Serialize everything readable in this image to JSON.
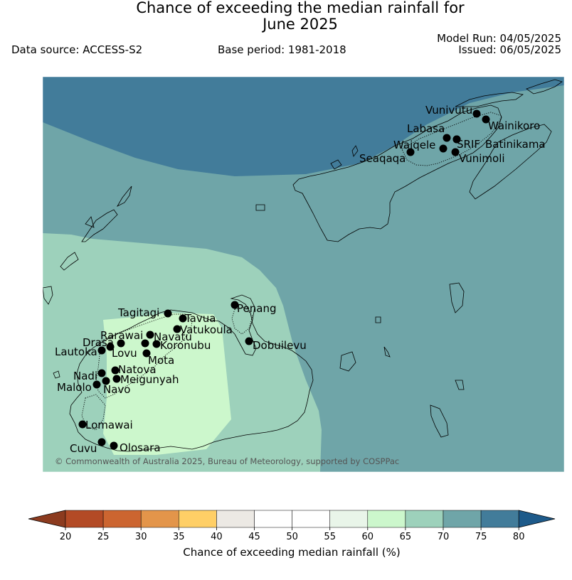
{
  "title_line1": "Chance of exceeding the median rainfall for",
  "title_line2": "June 2025",
  "data_source": "Data source: ACCESS-S2",
  "base_period": "Base period: 1981-2018",
  "model_run": "Model Run: 04/05/2025",
  "issued": "Issued: 06/05/2025",
  "copyright": "© Commonwealth of Australia 2025, Bureau of Meteorology, supported by COSPPac",
  "colorbar": {
    "label": "Chance of exceeding median rainfall (%)",
    "ticks": [
      "20",
      "25",
      "30",
      "35",
      "40",
      "45",
      "50",
      "55",
      "60",
      "65",
      "70",
      "75",
      "80"
    ],
    "colors": [
      "#8c3b1f",
      "#b34a25",
      "#cc6530",
      "#e3954a",
      "#ffcf66",
      "#ece9e4",
      "#ffffff",
      "#ffffff",
      "#e9f5e9",
      "#ccf7cc",
      "#9dd1bb",
      "#6fa5a8",
      "#427c9a",
      "#1d5a8a"
    ]
  },
  "regions": {
    "above_75": "#427c9a",
    "r70_75": "#6fa5a8",
    "r65_70": "#9dd1bb",
    "r60_65": "#ccf7cc"
  },
  "stations": [
    {
      "name": "Vunivutu"
    },
    {
      "name": "Wainikoro"
    },
    {
      "name": "Labasa"
    },
    {
      "name": "Waiqele"
    },
    {
      "name": "SRIF"
    },
    {
      "name": "Batinikama"
    },
    {
      "name": "Seaqaqa"
    },
    {
      "name": "Vunimoli"
    },
    {
      "name": "Tagitagi"
    },
    {
      "name": "Tavua"
    },
    {
      "name": "Penang"
    },
    {
      "name": "Vatukoula"
    },
    {
      "name": "Rarawai"
    },
    {
      "name": "Navatu"
    },
    {
      "name": "Drasa"
    },
    {
      "name": "Koronubu"
    },
    {
      "name": "Lautoka"
    },
    {
      "name": "Lovu"
    },
    {
      "name": "Dobuilevu"
    },
    {
      "name": "Mota"
    },
    {
      "name": "Natova"
    },
    {
      "name": "Nadi"
    },
    {
      "name": "Meigunyah"
    },
    {
      "name": "Malolo"
    },
    {
      "name": "Navo"
    },
    {
      "name": "Lomawai"
    },
    {
      "name": "Cuvu"
    },
    {
      "name": "Olosara"
    }
  ]
}
